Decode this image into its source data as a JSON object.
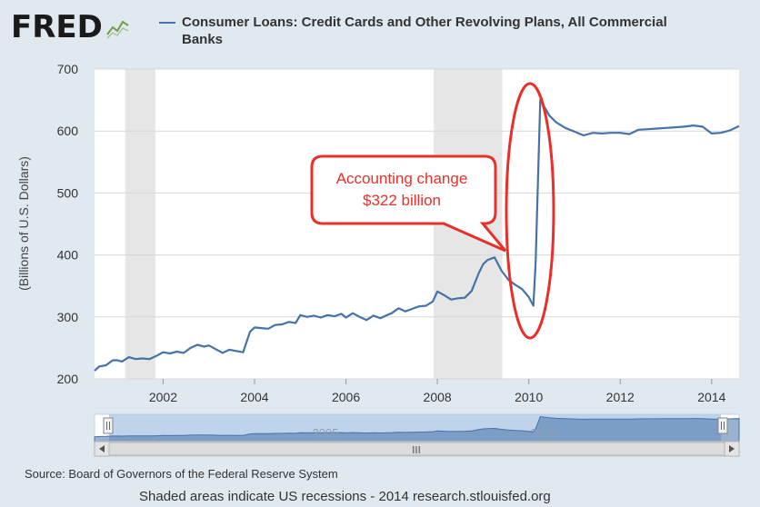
{
  "header": {
    "logo_text": "FRED",
    "logo_icon": "line-chart-icon",
    "title_line1": "Consumer Loans: Credit Cards and Other Revolving Plans, All Commercial",
    "title_line2": "Banks"
  },
  "source_text": "Source: Board of Governors of the Federal Reserve System",
  "footer_text": "Shaded areas indicate US recessions - 2014 research.stlouisfed.org",
  "navigator": {
    "labels": [
      "2005",
      "2010"
    ],
    "scroll_grip": "III"
  },
  "annotation": {
    "line1": "Accounting change",
    "line2": "$322 billion",
    "color": "#e8302a"
  },
  "chart_data": {
    "type": "line",
    "title": "Consumer Loans: Credit Cards and Other Revolving Plans, All Commercial Banks",
    "ylabel": "(Billions of U.S. Dollars)",
    "xlabel": "",
    "xlim": [
      2000.5,
      2014.6
    ],
    "ylim": [
      200,
      700
    ],
    "yticks": [
      200,
      300,
      400,
      500,
      600,
      700
    ],
    "xticks": [
      2002,
      2004,
      2006,
      2008,
      2010,
      2012,
      2014
    ],
    "grid": true,
    "line_color": "#4572a7",
    "recessions": [
      [
        2001.17,
        2001.83
      ],
      [
        2007.92,
        2009.42
      ]
    ],
    "series": [
      {
        "x": [
          2000.5,
          2000.6,
          2000.75,
          2000.9,
          2001.0,
          2001.1,
          2001.25,
          2001.4,
          2001.55,
          2001.7,
          2001.85,
          2002.0,
          2002.15,
          2002.3,
          2002.45,
          2002.6,
          2002.75,
          2002.9,
          2003.0,
          2003.15,
          2003.3,
          2003.45,
          2003.6,
          2003.75,
          2003.9,
          2004.0,
          2004.15,
          2004.3,
          2004.45,
          2004.6,
          2004.75,
          2004.9,
          2005.0,
          2005.15,
          2005.3,
          2005.45,
          2005.6,
          2005.75,
          2005.9,
          2006.0,
          2006.15,
          2006.3,
          2006.45,
          2006.6,
          2006.75,
          2006.9,
          2007.0,
          2007.15,
          2007.3,
          2007.45,
          2007.6,
          2007.75,
          2007.9,
          2008.0,
          2008.15,
          2008.3,
          2008.45,
          2008.6,
          2008.75,
          2008.9,
          2009.0,
          2009.1,
          2009.25,
          2009.4,
          2009.55,
          2009.7,
          2009.85,
          2010.0,
          2010.1,
          2010.15,
          2010.25,
          2010.45,
          2010.6,
          2010.8,
          2011.0,
          2011.2,
          2011.4,
          2011.6,
          2011.8,
          2012.0,
          2012.2,
          2012.4,
          2012.6,
          2012.8,
          2013.0,
          2013.2,
          2013.4,
          2013.6,
          2013.8,
          2014.0,
          2014.2,
          2014.4,
          2014.6
        ],
        "y": [
          213,
          220,
          222,
          230,
          230,
          228,
          235,
          232,
          233,
          232,
          237,
          243,
          241,
          244,
          242,
          250,
          255,
          252,
          254,
          248,
          242,
          247,
          245,
          243,
          276,
          283,
          282,
          281,
          287,
          288,
          292,
          290,
          303,
          300,
          302,
          299,
          303,
          301,
          305,
          299,
          306,
          300,
          295,
          302,
          298,
          303,
          306,
          314,
          309,
          313,
          317,
          318,
          325,
          341,
          335,
          328,
          330,
          331,
          342,
          370,
          385,
          392,
          396,
          375,
          360,
          352,
          345,
          332,
          318,
          388,
          650,
          625,
          614,
          605,
          599,
          593,
          597,
          596,
          597,
          597,
          595,
          602,
          603,
          604,
          605,
          606,
          607,
          609,
          607,
          596,
          597,
          601,
          608
        ]
      }
    ]
  }
}
